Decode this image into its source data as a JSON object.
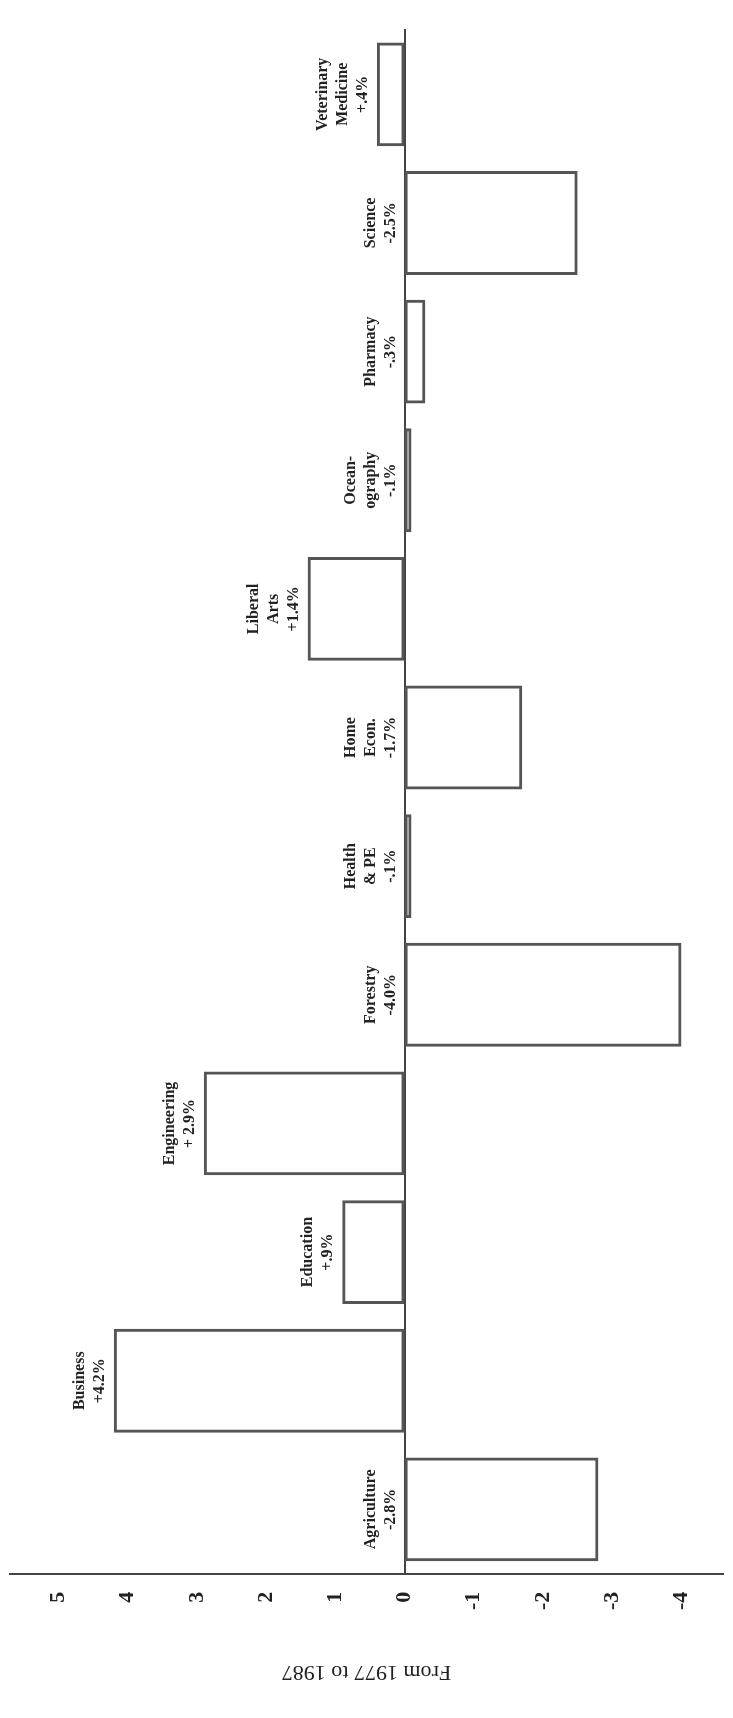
{
  "chart_data": {
    "type": "bar",
    "orientation": "horizontal",
    "xlabel": "From 1977 to 1987",
    "categories": [
      "Veterinary Medicine",
      "Science",
      "Pharmacy",
      "Ocean-ography",
      "Liberal Arts",
      "Home Econ.",
      "Health & PE",
      "Forestry",
      "Engineering",
      "Education",
      "Business",
      "Agriculture"
    ],
    "values": [
      0.4,
      -2.5,
      -0.3,
      -0.1,
      1.4,
      -1.7,
      -0.1,
      -4.0,
      2.9,
      0.9,
      4.2,
      -2.8
    ],
    "value_labels": [
      "+.4%",
      "-2.5%",
      "-.3%",
      "-.1%",
      "+1.4%",
      "-1.7%",
      "-.1%",
      "-4.0%",
      "+ 2.9%",
      "+.9%",
      "+4.2%",
      "-2.8%"
    ],
    "color": "#555555",
    "xlim": [
      5.7,
      -4.6
    ],
    "xticks": [
      5,
      4,
      3,
      2,
      1,
      0,
      -1,
      -2,
      -3,
      -4
    ],
    "grid": false,
    "legend": false
  }
}
